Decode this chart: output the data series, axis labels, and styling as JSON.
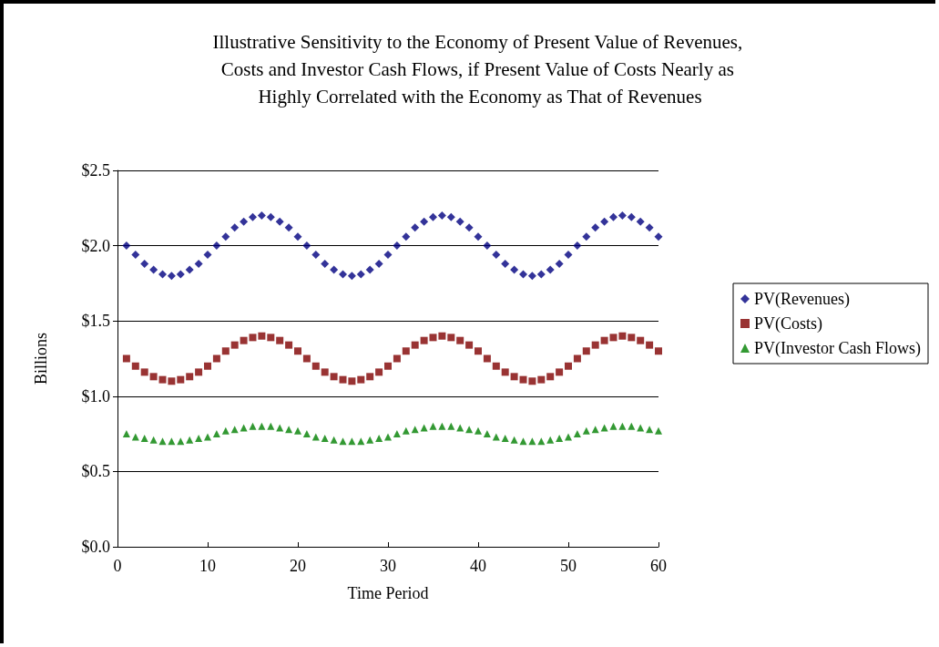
{
  "chart_data": {
    "type": "scatter",
    "title": "Illustrative Sensitivity to the Economy of Present Value of Revenues, Costs and Investor Cash Flows, if Present Value of Costs Nearly as Highly Correlated with the Economy as That of Revenues",
    "xlabel": "Time Period",
    "ylabel": "Billions",
    "x": [
      1,
      2,
      3,
      4,
      5,
      6,
      7,
      8,
      9,
      10,
      11,
      12,
      13,
      14,
      15,
      16,
      17,
      18,
      19,
      20,
      21,
      22,
      23,
      24,
      25,
      26,
      27,
      28,
      29,
      30,
      31,
      32,
      33,
      34,
      35,
      36,
      37,
      38,
      39,
      40,
      41,
      42,
      43,
      44,
      45,
      46,
      47,
      48,
      49,
      50,
      51,
      52,
      53,
      54,
      55,
      56,
      57,
      58,
      59,
      60
    ],
    "series": [
      {
        "name": "PV(Revenues)",
        "color": "#000080",
        "marker": "diamond",
        "values": [
          2.0,
          1.94,
          1.88,
          1.84,
          1.81,
          1.8,
          1.81,
          1.84,
          1.88,
          1.94,
          2.0,
          2.06,
          2.12,
          2.16,
          2.19,
          2.2,
          2.19,
          2.16,
          2.12,
          2.06,
          2.0,
          1.94,
          1.88,
          1.84,
          1.81,
          1.8,
          1.81,
          1.84,
          1.88,
          1.94,
          2.0,
          2.06,
          2.12,
          2.16,
          2.19,
          2.2,
          2.19,
          2.16,
          2.12,
          2.06,
          2.0,
          1.94,
          1.88,
          1.84,
          1.81,
          1.8,
          1.81,
          1.84,
          1.88,
          1.94,
          2.0,
          2.06,
          2.12,
          2.16,
          2.19,
          2.2,
          2.19,
          2.16,
          2.12,
          2.06
        ]
      },
      {
        "name": "PV(Costs)",
        "color": "#800000",
        "marker": "square",
        "values": [
          1.25,
          1.2,
          1.16,
          1.13,
          1.11,
          1.1,
          1.11,
          1.13,
          1.16,
          1.2,
          1.25,
          1.3,
          1.34,
          1.37,
          1.39,
          1.4,
          1.39,
          1.37,
          1.34,
          1.3,
          1.25,
          1.2,
          1.16,
          1.13,
          1.11,
          1.1,
          1.11,
          1.13,
          1.16,
          1.2,
          1.25,
          1.3,
          1.34,
          1.37,
          1.39,
          1.4,
          1.39,
          1.37,
          1.34,
          1.3,
          1.25,
          1.2,
          1.16,
          1.13,
          1.11,
          1.1,
          1.11,
          1.13,
          1.16,
          1.2,
          1.25,
          1.3,
          1.34,
          1.37,
          1.39,
          1.4,
          1.39,
          1.37,
          1.34,
          1.3
        ]
      },
      {
        "name": "PV(Investor Cash Flows)",
        "color": "#008000",
        "marker": "triangle",
        "values": [
          0.75,
          0.73,
          0.72,
          0.71,
          0.7,
          0.7,
          0.7,
          0.71,
          0.72,
          0.73,
          0.75,
          0.77,
          0.78,
          0.79,
          0.8,
          0.8,
          0.8,
          0.79,
          0.78,
          0.77,
          0.75,
          0.73,
          0.72,
          0.71,
          0.7,
          0.7,
          0.7,
          0.71,
          0.72,
          0.73,
          0.75,
          0.77,
          0.78,
          0.79,
          0.8,
          0.8,
          0.8,
          0.79,
          0.78,
          0.77,
          0.75,
          0.73,
          0.72,
          0.71,
          0.7,
          0.7,
          0.7,
          0.71,
          0.72,
          0.73,
          0.75,
          0.77,
          0.78,
          0.79,
          0.8,
          0.8,
          0.8,
          0.79,
          0.78,
          0.77
        ]
      }
    ],
    "xlim": [
      0,
      60
    ],
    "xticks": [
      0,
      10,
      20,
      30,
      40,
      50,
      60
    ],
    "ylim": [
      0,
      2.5
    ],
    "yticks": [
      {
        "value": 0,
        "label": "$0.0"
      },
      {
        "value": 0.5,
        "label": "$0.5"
      },
      {
        "value": 1,
        "label": "$1.0"
      },
      {
        "value": 1.5,
        "label": "$1.5"
      },
      {
        "value": 2,
        "label": "$2.0"
      },
      {
        "value": 2.5,
        "label": "$2.5"
      }
    ],
    "grid": "y",
    "legend": "right"
  }
}
